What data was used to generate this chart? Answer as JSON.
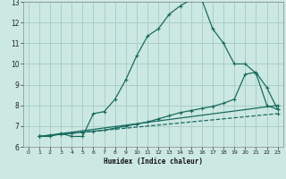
{
  "xlabel": "Humidex (Indice chaleur)",
  "ylabel": "",
  "bg_color": "#cce8e2",
  "grid_color": "#aacfc8",
  "line_color": "#1a6b60",
  "xlim": [
    -0.5,
    23.5
  ],
  "ylim": [
    6,
    13
  ],
  "xticks": [
    0,
    1,
    2,
    3,
    4,
    5,
    6,
    7,
    8,
    9,
    10,
    11,
    12,
    13,
    14,
    15,
    16,
    17,
    18,
    19,
    20,
    21,
    22,
    23
  ],
  "yticks": [
    6,
    7,
    8,
    9,
    10,
    11,
    12,
    13
  ],
  "series1_x": [
    1,
    2,
    3,
    4,
    5,
    6,
    7,
    8,
    9,
    10,
    11,
    12,
    13,
    14,
    15,
    16,
    17,
    18,
    19,
    20,
    21,
    22,
    23
  ],
  "series1_y": [
    6.5,
    6.5,
    6.65,
    6.5,
    6.5,
    7.6,
    7.7,
    8.3,
    9.25,
    10.4,
    11.35,
    11.7,
    12.4,
    12.8,
    13.1,
    13.1,
    11.7,
    11.0,
    10.0,
    10.0,
    9.55,
    8.0,
    7.8
  ],
  "series2_x": [
    1,
    2,
    3,
    4,
    5,
    6,
    7,
    8,
    9,
    10,
    11,
    12,
    13,
    14,
    15,
    16,
    17,
    18,
    19,
    20,
    21,
    22,
    23
  ],
  "series2_y": [
    6.5,
    6.55,
    6.6,
    6.65,
    6.7,
    6.75,
    6.8,
    6.9,
    7.0,
    7.1,
    7.2,
    7.35,
    7.5,
    7.65,
    7.75,
    7.85,
    7.95,
    8.1,
    8.3,
    9.5,
    9.6,
    8.85,
    7.8
  ],
  "series3_x": [
    1,
    23
  ],
  "series3_y": [
    6.5,
    8.0
  ],
  "series4_x": [
    1,
    23
  ],
  "series4_y": [
    6.5,
    7.6
  ]
}
